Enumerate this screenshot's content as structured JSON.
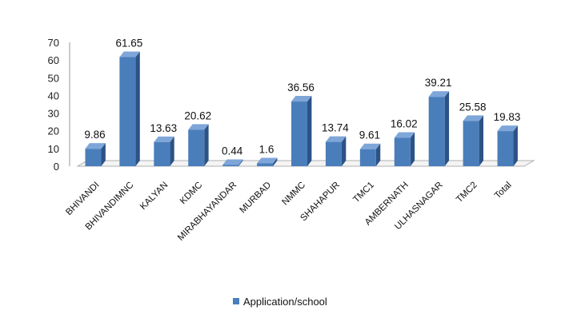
{
  "chart_data": {
    "type": "bar",
    "title": "",
    "xlabel": "",
    "ylabel": "",
    "ylim": [
      0,
      70
    ],
    "yticks": [
      "0",
      "10",
      "20",
      "30",
      "40",
      "50",
      "60",
      "70"
    ],
    "categories": [
      "BHIVANDI",
      "BHIVANDIMNC",
      "KALYAN",
      "KDMC",
      "MIRABHAYANDAR",
      "MURBAD",
      "NMMC",
      "SHAHAPUR",
      "TMC1",
      "AMBERNATH",
      "ULHASNAGAR",
      "TMC2",
      "Total"
    ],
    "series": [
      {
        "name": "Application/school",
        "values": [
          9.86,
          61.65,
          13.63,
          20.62,
          0.44,
          1.6,
          36.56,
          13.74,
          9.61,
          16.02,
          39.21,
          25.58,
          19.83
        ],
        "labels": [
          "9.86",
          "61.65",
          "13.63",
          "20.62",
          "0.44",
          "1.6",
          "36.56",
          "13.74",
          "9.61",
          "16.02",
          "39.21",
          "25.58",
          "19.83"
        ]
      }
    ],
    "grid": false,
    "legend": "bottom",
    "style": "3d-column",
    "colors": {
      "bar_front": "#4a7ebb",
      "bar_side": "#2c5286",
      "bar_top": "#7fa6d9",
      "legend_swatch": "#4a7ebb"
    }
  }
}
